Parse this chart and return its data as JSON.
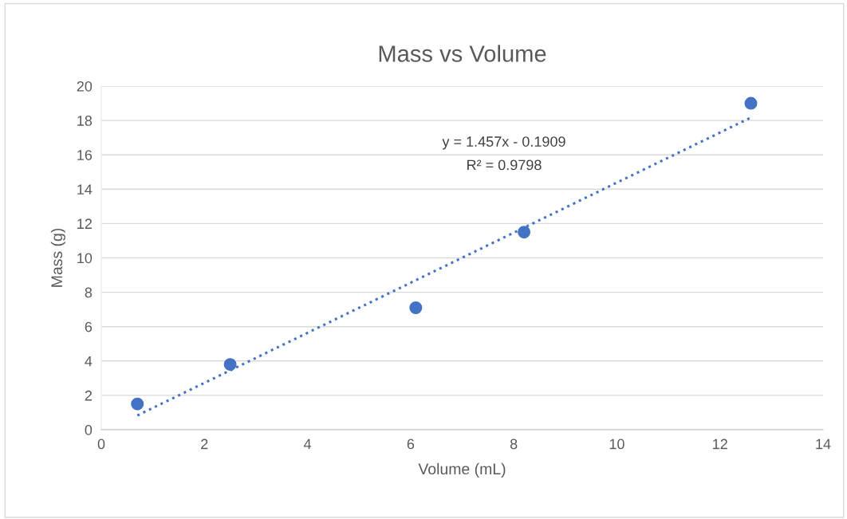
{
  "chart_data": {
    "type": "scatter",
    "title": "Mass vs Volume",
    "xlabel": "Volume (mL)",
    "ylabel": "Mass (g)",
    "series": [
      {
        "color": "#4472c4",
        "marker": "circle",
        "x": [
          0.7,
          2.5,
          6.1,
          8.2,
          12.6
        ],
        "values": [
          1.5,
          3.8,
          7.1,
          11.5,
          19.0
        ]
      },
      {
        "type": "line",
        "color": "#4472c4",
        "marker": "none",
        "line_style": "dotted",
        "x": [
          0.7,
          12.6
        ],
        "values": [
          0.83,
          18.17
        ]
      }
    ],
    "annotations": [
      "y = 1.457x - 0.1909",
      "R² = 0.9798"
    ],
    "xlim": [
      0,
      14
    ],
    "xticks": [
      0,
      2,
      4,
      6,
      8,
      10,
      12,
      14
    ],
    "ylim": [
      0,
      20
    ],
    "yticks": [
      0,
      2,
      4,
      6,
      8,
      10,
      12,
      14,
      16,
      18,
      20
    ],
    "grid": "y",
    "legend": false
  }
}
